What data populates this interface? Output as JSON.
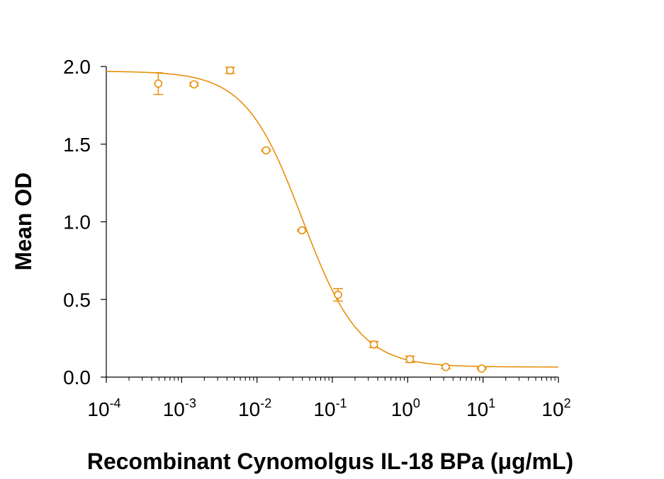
{
  "chart_data": {
    "type": "scatter",
    "xlabel": "Recombinant Cynomolgus IL-18 BPa (μg/mL)",
    "ylabel": "Mean OD",
    "xscale": "log",
    "xlim": [
      0.0001,
      100
    ],
    "ylim": [
      0,
      2.0
    ],
    "xticks": [
      {
        "base": "10",
        "exp": "-4",
        "value": 0.0001
      },
      {
        "base": "10",
        "exp": "-3",
        "value": 0.001
      },
      {
        "base": "10",
        "exp": "-2",
        "value": 0.01
      },
      {
        "base": "10",
        "exp": "-1",
        "value": 0.1
      },
      {
        "base": "10",
        "exp": "0",
        "value": 1
      },
      {
        "base": "10",
        "exp": "1",
        "value": 10
      },
      {
        "base": "10",
        "exp": "2",
        "value": 100
      }
    ],
    "yticks": [
      {
        "label": "0.0",
        "value": 0.0
      },
      {
        "label": "0.5",
        "value": 0.5
      },
      {
        "label": "1.0",
        "value": 1.0
      },
      {
        "label": "1.5",
        "value": 1.5
      },
      {
        "label": "2.0",
        "value": 2.0
      }
    ],
    "grid": false,
    "color": "#E8900C",
    "series": [
      {
        "points": [
          {
            "x": 0.00049,
            "y": 1.89,
            "err": 0.07
          },
          {
            "x": 0.00146,
            "y": 1.885,
            "err": 0.01
          },
          {
            "x": 0.00439,
            "y": 1.975,
            "err": 0.02
          },
          {
            "x": 0.0132,
            "y": 1.46,
            "err": 0.005
          },
          {
            "x": 0.0395,
            "y": 0.945,
            "err": 0.005
          },
          {
            "x": 0.119,
            "y": 0.53,
            "err": 0.04
          },
          {
            "x": 0.356,
            "y": 0.21,
            "err": 0.02
          },
          {
            "x": 1.07,
            "y": 0.115,
            "err": 0.02
          },
          {
            "x": 3.2,
            "y": 0.065,
            "err": 0.01
          },
          {
            "x": 9.6,
            "y": 0.055,
            "err": 0.005
          }
        ],
        "fit": {
          "model": "4PL",
          "top": 1.97,
          "bottom": 0.065,
          "ic50": 0.04,
          "hill": 1.15
        }
      }
    ]
  }
}
